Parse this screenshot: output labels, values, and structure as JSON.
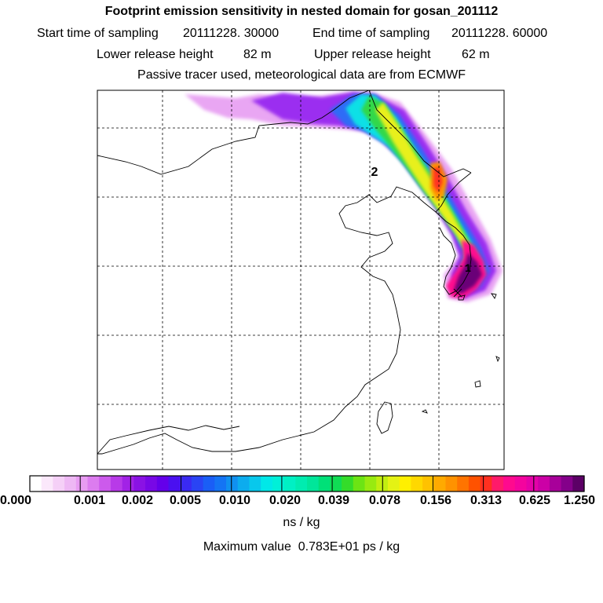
{
  "header": {
    "title": "Footprint emission sensitivity in nested domain for gosan_201112",
    "start_label": "Start time of sampling",
    "start_value": "20111228. 30000",
    "end_label": "End time of sampling",
    "end_value": "20111228. 60000",
    "lower_label": "Lower release height",
    "lower_value": "82 m",
    "upper_label": "Upper release height",
    "upper_value": "62 m",
    "note": "Passive tracer used, meteorological data are from ECMWF"
  },
  "map": {
    "markers": [
      {
        "label": "2"
      },
      {
        "label": "1"
      }
    ]
  },
  "legend": {
    "ticks": [
      "0.000",
      "0.001",
      "0.002",
      "0.005",
      "0.010",
      "0.020",
      "0.039",
      "0.078",
      "0.156",
      "0.313",
      "0.625",
      "1.250"
    ],
    "colors": [
      "#ffffff",
      "#fbe8fb",
      "#f5d0f7",
      "#eeb8f4",
      "#e89cf2",
      "#dc7cef",
      "#cc5aec",
      "#b83ae8",
      "#a222e6",
      "#8a12e4",
      "#7808e6",
      "#6400ea",
      "#4a10f0",
      "#3a2af2",
      "#2a44f4",
      "#1a5ef6",
      "#1474f4",
      "#1090f0",
      "#0cacee",
      "#08c8ec",
      "#00e8e8",
      "#00f0d8",
      "#00f0c4",
      "#00ecb0",
      "#00e69a",
      "#00e078",
      "#10dc54",
      "#34dc2a",
      "#6ce414",
      "#98ea10",
      "#c2ee10",
      "#e4f214",
      "#fff000",
      "#ffd800",
      "#ffc200",
      "#ffaa00",
      "#ff9200",
      "#ff7400",
      "#ff5200",
      "#ff3020",
      "#ff1a6a",
      "#ff0a8e",
      "#f4049e",
      "#e402a8",
      "#cc00a6",
      "#a8009a",
      "#84008a",
      "#5c0066"
    ],
    "unit": "ns / kg",
    "max_label": "Maximum value",
    "max_value": "0.783E+01 ps / kg"
  }
}
